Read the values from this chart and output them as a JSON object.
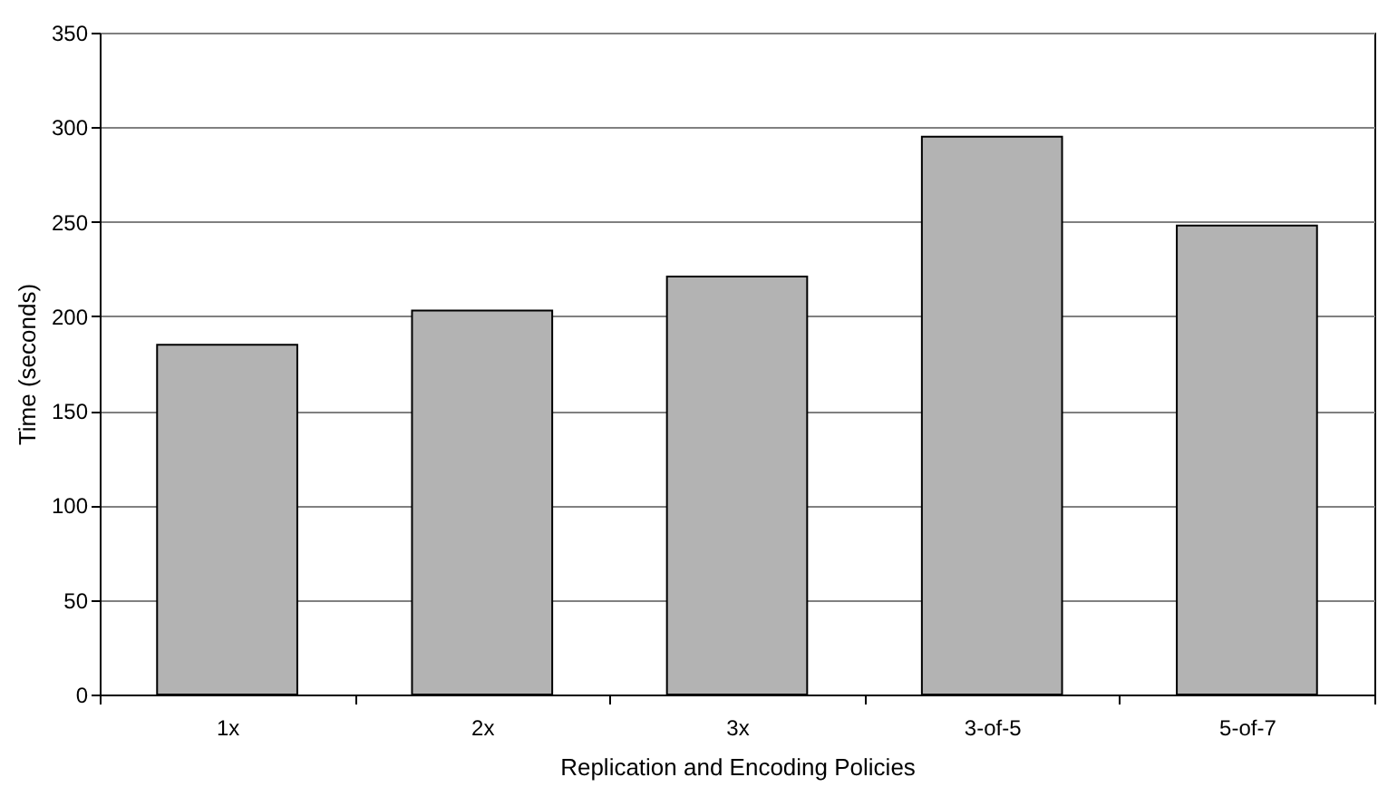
{
  "chart_data": {
    "type": "bar",
    "xlabel": "Replication and Encoding Policies",
    "ylabel": "Time (seconds)",
    "categories": [
      "1x",
      "2x",
      "3x",
      "3-of-5",
      "5-of-7"
    ],
    "values": [
      185,
      203,
      221,
      295,
      248
    ],
    "color": "#b3b3b3",
    "ylim": [
      0,
      350
    ],
    "yticks": [
      0,
      50,
      100,
      150,
      200,
      250,
      300,
      350
    ],
    "grid": "y"
  }
}
